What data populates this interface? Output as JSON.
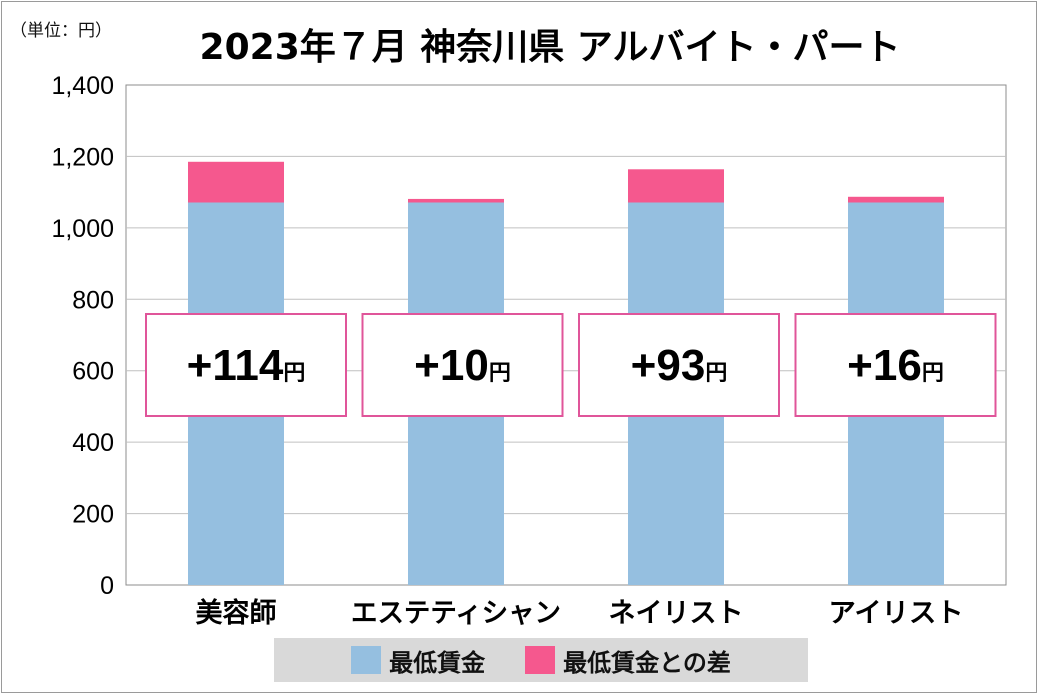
{
  "unit_note": "（単位：円）",
  "colors": {
    "min_wage": "#95bfe0",
    "difference": "#f5588e",
    "grid": "#c0c0c0",
    "box_border": "#e0559a"
  },
  "chart_data": {
    "type": "bar",
    "stacked": true,
    "title": "2023年７月 神奈川県 アルバイト・パート",
    "categories": [
      "美容師",
      "エステティシャン",
      "ネイリスト",
      "アイリスト"
    ],
    "series": [
      {
        "name": "最低賃金",
        "values": [
          1071,
          1071,
          1071,
          1071
        ]
      },
      {
        "name": "最低賃金との差",
        "values": [
          114,
          10,
          93,
          16
        ]
      }
    ],
    "ylim": [
      0,
      1400
    ],
    "yticks": [
      "0",
      "200",
      "400",
      "600",
      "800",
      "1,000",
      "1,200",
      "1,400"
    ],
    "grid": true,
    "legend_position": "bottom",
    "annotations": [
      {
        "sign": "+",
        "value": "114",
        "unit": "円"
      },
      {
        "sign": "+",
        "value": "10",
        "unit": "円"
      },
      {
        "sign": "+",
        "value": "93",
        "unit": "円"
      },
      {
        "sign": "+",
        "value": "16",
        "unit": "円"
      }
    ]
  }
}
